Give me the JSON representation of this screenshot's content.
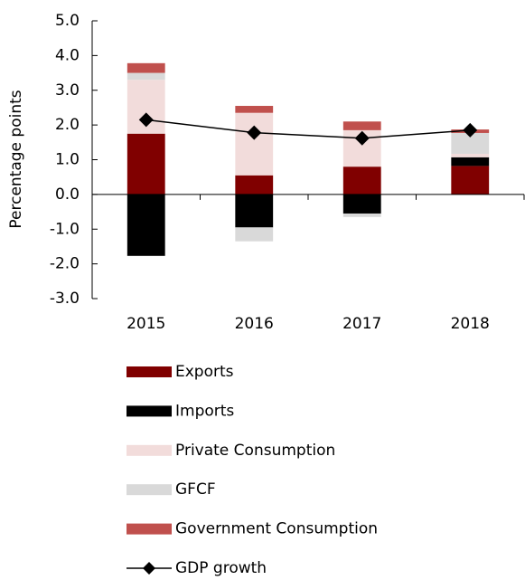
{
  "chart_data": {
    "type": "stacked_bar_line",
    "ylabel": "Percentage points",
    "categories": [
      "2015",
      "2016",
      "2017",
      "2018"
    ],
    "series": [
      {
        "name": "Exports",
        "color": "#800000",
        "values": [
          1.75,
          0.55,
          0.8,
          0.82
        ]
      },
      {
        "name": "Imports",
        "color": "#000000",
        "values": [
          -1.77,
          -0.95,
          -0.55,
          0.25
        ]
      },
      {
        "name": "Private Consumption",
        "color": "#f2dcdb",
        "values": [
          1.55,
          1.8,
          1.05,
          0.1
        ]
      },
      {
        "name": "GFCF",
        "color": "#d9d9d9",
        "values": [
          0.2,
          -0.4,
          -0.1,
          0.6
        ]
      },
      {
        "name": "Government Consumption",
        "color": "#c0504d",
        "values": [
          0.28,
          0.2,
          0.25,
          0.1
        ]
      }
    ],
    "line": {
      "name": "GDP growth",
      "color": "#000000",
      "values": [
        2.15,
        1.78,
        1.62,
        1.85
      ]
    },
    "ylim": [
      -3.0,
      5.0
    ],
    "yticks": [
      {
        "value": -3,
        "label": "-3.0"
      },
      {
        "value": -2,
        "label": "-2.0"
      },
      {
        "value": -1,
        "label": "-1.0"
      },
      {
        "value": 0,
        "label": "0.0"
      },
      {
        "value": 1,
        "label": "1.0"
      },
      {
        "value": 2,
        "label": "2.0"
      },
      {
        "value": 3,
        "label": "3.0"
      },
      {
        "value": 4,
        "label": "4.0"
      },
      {
        "value": 5,
        "label": "5.0"
      }
    ],
    "legend": "bottom"
  }
}
